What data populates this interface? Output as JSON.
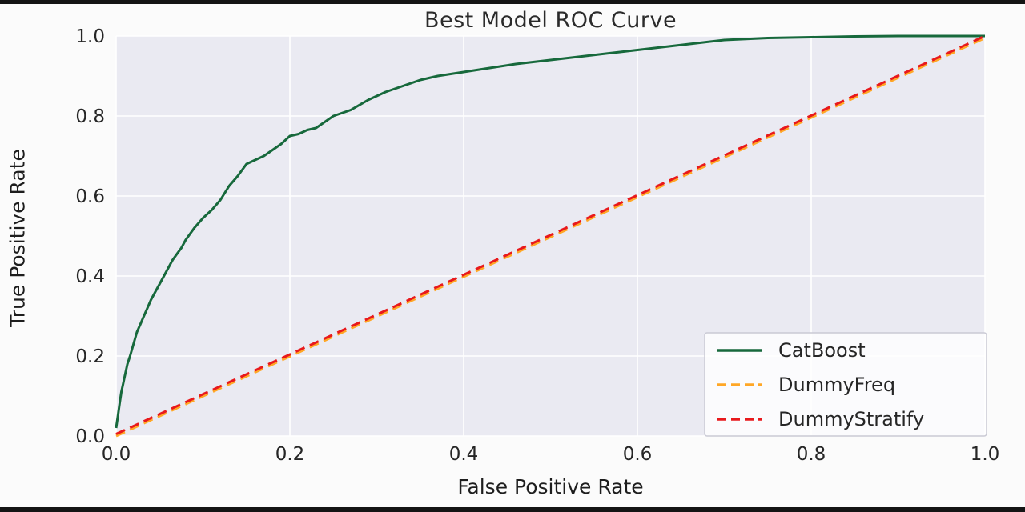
{
  "figure": {
    "title": "Best Model ROC Curve",
    "xlabel": "False Positive Rate",
    "ylabel": "True Positive Rate"
  },
  "chart_data": {
    "type": "line",
    "title": "Best Model ROC Curve",
    "xlabel": "False Positive Rate",
    "ylabel": "True Positive Rate",
    "xlim": [
      0.0,
      1.0
    ],
    "ylim": [
      0.0,
      1.0
    ],
    "xticks": [
      0.0,
      0.2,
      0.4,
      0.6,
      0.8,
      1.0
    ],
    "yticks": [
      0.0,
      0.2,
      0.4,
      0.6,
      0.8,
      1.0
    ],
    "grid": true,
    "plot_background": "#eaeaf2",
    "grid_color": "#ffffff",
    "text_color": "#262626",
    "legend_position": "lower right",
    "legend_border_color": "#c9c9d4",
    "series": [
      {
        "name": "CatBoost",
        "color": "#17693c",
        "style": "solid",
        "x": [
          0.0,
          0.002,
          0.004,
          0.006,
          0.008,
          0.01,
          0.013,
          0.016,
          0.02,
          0.024,
          0.028,
          0.032,
          0.036,
          0.04,
          0.045,
          0.05,
          0.055,
          0.06,
          0.065,
          0.07,
          0.075,
          0.08,
          0.09,
          0.1,
          0.11,
          0.12,
          0.13,
          0.14,
          0.15,
          0.16,
          0.17,
          0.18,
          0.19,
          0.2,
          0.21,
          0.22,
          0.23,
          0.25,
          0.27,
          0.29,
          0.31,
          0.33,
          0.35,
          0.37,
          0.4,
          0.43,
          0.46,
          0.5,
          0.54,
          0.58,
          0.62,
          0.66,
          0.7,
          0.75,
          0.8,
          0.85,
          0.9,
          1.0
        ],
        "y": [
          0.02,
          0.05,
          0.08,
          0.11,
          0.13,
          0.15,
          0.18,
          0.2,
          0.23,
          0.26,
          0.28,
          0.3,
          0.32,
          0.34,
          0.36,
          0.38,
          0.4,
          0.42,
          0.44,
          0.455,
          0.47,
          0.49,
          0.52,
          0.545,
          0.565,
          0.59,
          0.625,
          0.65,
          0.68,
          0.69,
          0.7,
          0.715,
          0.73,
          0.75,
          0.755,
          0.765,
          0.77,
          0.8,
          0.815,
          0.84,
          0.86,
          0.875,
          0.89,
          0.9,
          0.91,
          0.92,
          0.93,
          0.94,
          0.95,
          0.96,
          0.97,
          0.98,
          0.99,
          0.995,
          0.997,
          0.999,
          1.0,
          1.0
        ]
      },
      {
        "name": "DummyFreq",
        "color": "#ffa726",
        "style": "dashed",
        "x": [
          0.0,
          1.0
        ],
        "y": [
          0.0,
          0.995
        ]
      },
      {
        "name": "DummyStratify",
        "color": "#e8191c",
        "style": "dashed",
        "x": [
          0.0,
          1.0
        ],
        "y": [
          0.005,
          1.0
        ]
      }
    ]
  }
}
